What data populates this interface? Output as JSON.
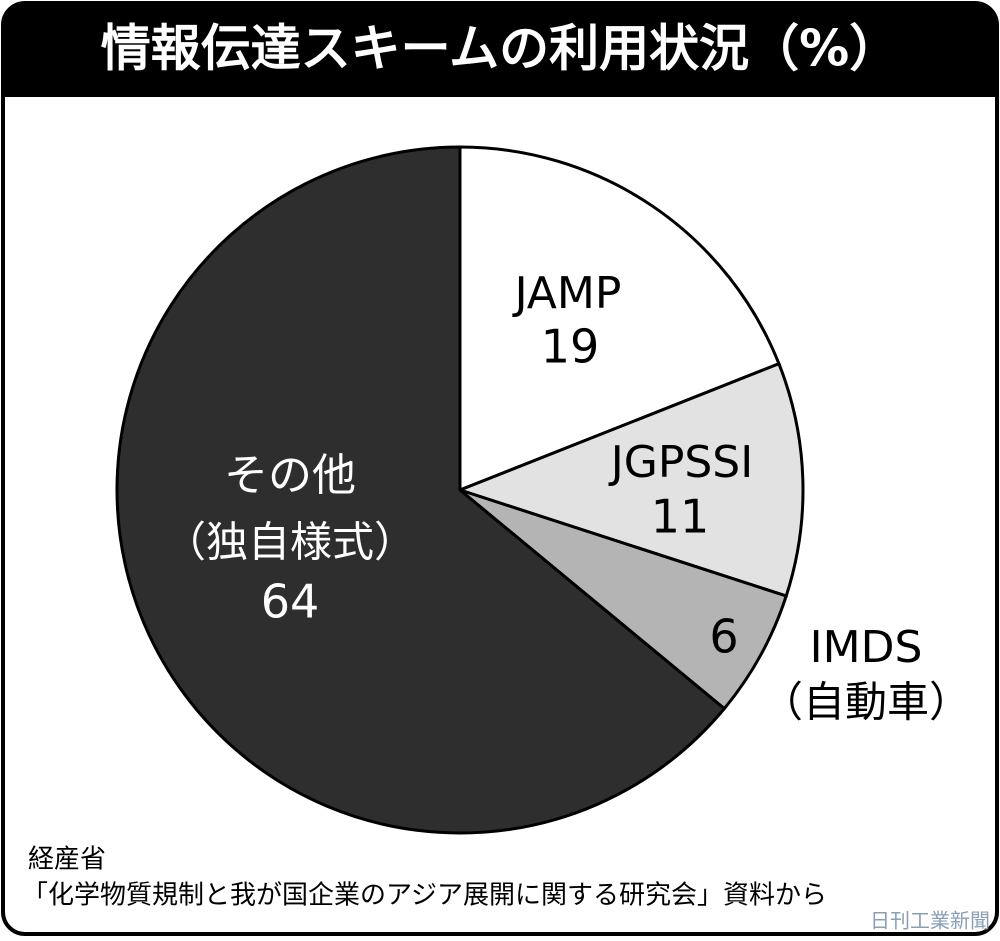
{
  "chart_data": {
    "type": "pie",
    "title": "情報伝達スキームの利用状況（%）",
    "categories": [
      "JAMP",
      "JGPSSI",
      "IMDS",
      "その他"
    ],
    "category_notes": [
      null,
      null,
      "（自動車）",
      "（独自様式）"
    ],
    "values": [
      19,
      11,
      6,
      64
    ],
    "colors": [
      "#ffffff",
      "#e2e2e2",
      "#b4b4b4",
      "#2e2e2e"
    ],
    "source_lines": [
      "経産省",
      "「化学物質規制と我が国企業のアジア展開に関する研究会」資料から"
    ],
    "credit": "日刊工業新聞"
  }
}
